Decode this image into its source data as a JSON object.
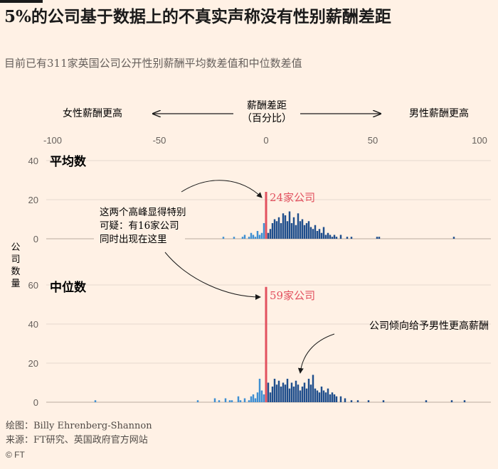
{
  "title": "5%的公司基于数据上的不真实声称没有性别薪酬差距",
  "subtitle": "目前已有311家英国公司公开性别薪酬平均数差值和中位数差值",
  "source": {
    "credit": "绘图：Billy Ehrenberg-Shannon",
    "source": "来源：FT研究、英国政府官方网站",
    "copyright": "© FT"
  },
  "direction": {
    "left": "女性薪酬更高",
    "center_line1": "薪酬差距",
    "center_line2": "（百分比）",
    "right": "男性薪酬更高"
  },
  "y_axis_label": [
    "公",
    "司",
    "数",
    "量"
  ],
  "annotations": {
    "peak_note": [
      "这两个高峰显得特别",
      "可疑：有16家公司",
      "同时出现在这里"
    ],
    "mean_peak_label": "24家公司",
    "median_peak_label": "59家公司",
    "men_note": "公司倾向给予男性更高薪酬"
  },
  "colors": {
    "women_higher": "#3f8fd2",
    "men_higher": "#1f4e8c",
    "zero_line": "#e2515f",
    "background": "#fff1e5",
    "text": "#1a1a1a"
  },
  "chart_data": [
    {
      "type": "bar",
      "title": "平均数",
      "xlabel": "薪酬差距（百分比）",
      "ylabel": "公司数量",
      "xlim": [
        -100,
        100
      ],
      "ylim": [
        0,
        40
      ],
      "yticks": [
        0,
        20,
        40
      ],
      "xticks": [
        -100,
        -50,
        0,
        50,
        100
      ],
      "x": [
        -20,
        -15,
        -11,
        -10,
        -8,
        -7,
        -6,
        -5,
        -4,
        -3,
        -2,
        -1,
        0,
        1,
        2,
        3,
        4,
        5,
        6,
        7,
        8,
        9,
        10,
        11,
        12,
        13,
        14,
        15,
        16,
        17,
        18,
        19,
        20,
        21,
        22,
        23,
        24,
        25,
        26,
        27,
        28,
        29,
        30,
        31,
        32,
        33,
        35,
        38,
        40,
        52,
        53,
        88
      ],
      "values": [
        1,
        1,
        1,
        2,
        1,
        3,
        2,
        1,
        4,
        2,
        3,
        8,
        24,
        3,
        5,
        8,
        10,
        9,
        11,
        8,
        13,
        12,
        9,
        14,
        8,
        11,
        7,
        13,
        9,
        10,
        7,
        8,
        9,
        6,
        5,
        7,
        4,
        5,
        3,
        6,
        2,
        3,
        2,
        1,
        2,
        1,
        2,
        1,
        1,
        1,
        1,
        1
      ]
    },
    {
      "type": "bar",
      "title": "中位数",
      "xlabel": "薪酬差距（百分比）",
      "ylabel": "公司数量",
      "xlim": [
        -100,
        100
      ],
      "ylim": [
        0,
        60
      ],
      "yticks": [
        0,
        20,
        40,
        60
      ],
      "xticks": [
        -100,
        -50,
        0,
        50,
        100
      ],
      "x": [
        -80,
        -32,
        -24,
        -22,
        -19,
        -17,
        -16,
        -13,
        -12,
        -10,
        -8,
        -7,
        -6,
        -5,
        -4,
        -3,
        -2,
        -1,
        0,
        1,
        2,
        3,
        4,
        5,
        6,
        7,
        8,
        9,
        10,
        11,
        12,
        13,
        14,
        15,
        16,
        17,
        18,
        19,
        20,
        21,
        22,
        23,
        24,
        25,
        26,
        27,
        28,
        29,
        30,
        31,
        32,
        33,
        35,
        37,
        40,
        43,
        48,
        55,
        75,
        87,
        93
      ],
      "values": [
        1,
        1,
        2,
        1,
        2,
        1,
        1,
        3,
        1,
        2,
        1,
        3,
        4,
        2,
        5,
        12,
        6,
        4,
        59,
        10,
        5,
        8,
        12,
        9,
        11,
        8,
        10,
        9,
        12,
        7,
        10,
        8,
        11,
        9,
        6,
        8,
        10,
        7,
        12,
        9,
        14,
        7,
        6,
        5,
        8,
        6,
        5,
        7,
        4,
        5,
        4,
        3,
        3,
        2,
        1,
        1,
        1,
        1,
        1,
        1,
        1
      ]
    }
  ]
}
